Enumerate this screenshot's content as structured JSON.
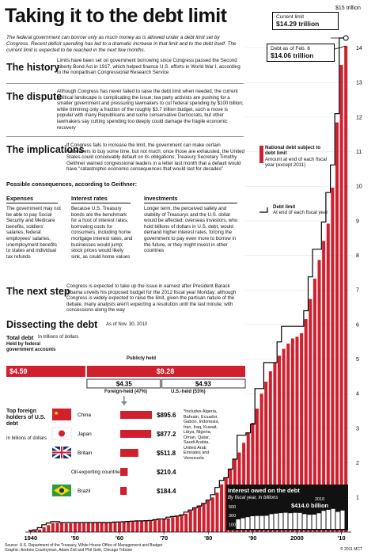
{
  "title": "Taking it to the debt limit",
  "intro": "The federal government can borrow only as much money as is allowed under a debt limit set by Congress. Recent deficit spending has led to a dramatic increase in that limit and to the debt itself. The current limit is expected to be reached in the next few months.",
  "sections": {
    "history_title": "The history",
    "history_body": "Limits have been set on government borrowing since Congress passed the Second Liberty Bond Act in 1917, which helped finance U.S. efforts in World War I, according to the nonpartisan Congressional Research Service",
    "dispute_title": "The dispute",
    "dispute_body": "Although Congress has never failed to raise the debt limit when needed, the current political landscape is complicating the issue; tea party activists are pushing for a smaller government and pressuring lawmakers to cut federal spending by $100 billion; while trimming only a fraction of the roughly $3.7 trillion budget, such a move is popular with many Republicans and some conservative Democrats, but other lawmakers say cutting spending too deeply could damage the fragile economic recovery",
    "implications_title": "The implications",
    "implications_body": "If Congress fails to increase the limit, the government can make certain maneuvers to buy some time, but not much; once those are exhausted, the United States could conceivably default on its obligations; Treasury Secretary Timothy Geithner warned congressional leaders in a letter last month that a default would have \"catastrophic economic consequences that would last for decades\"",
    "consequences_title": "Possible consequences, according to Geithner:",
    "expenses_head": "Expenses",
    "expenses_body": "The government may not be able to pay Social Security and Medicare benefits, soldiers' salaries, federal employees' salaries, unemployment benefits to states and individual tax refunds",
    "rates_head": "Interest rates",
    "rates_body": "Because U.S. Treasury bonds are the benchmark for a host of interest rates, borrowing costs for consumers, including home mortgage interest rates, and businesses would jump; stock prices would likely sink, as could home values",
    "investments_head": "Investments",
    "investments_body": "Longer term, the perceived safety and stability of Treasurys and the U.S. dollar would be affected; overseas investors, who hold billions of dollars in U.S. debt, would demand higher interest rates, forcing the government to pay even more to borrow in the future, or they might invest in other countries",
    "next_title": "The next step",
    "next_body": "Congress is expected to take up the issue in earnest after President Barack Obama unveils his proposed budget for the 2012 fiscal year Monday; although Congress is widely expected to raise the limit, given the partisan nature of the debate, many analysts aren't expecting a resolution until the last minute, with concessions along the way",
    "dissect_title": "Dissecting the debt",
    "dissect_date": "As of Nov. 30, 2010"
  },
  "breakdown": {
    "total_label": "Total debt",
    "total_unit": "In trillions of dollars",
    "fed_label": "Held by federal government accounts",
    "public_label": "Publicly held",
    "fed_value": 4.59,
    "fed_text": "$4.59",
    "public_value": 9.28,
    "public_text": "$9.28",
    "foreign_value": 4.35,
    "foreign_text": "$4.35",
    "us_value": 4.93,
    "us_text": "$4.93",
    "foreign_label": "Foreign-held (47%)",
    "us_label": "U.S.-held (53%)"
  },
  "holders": {
    "title": "Top foreign holders of U.S. debt",
    "unit": "In billions of dollars",
    "items": [
      {
        "name": "China",
        "value": 895.6,
        "text": "$895.6"
      },
      {
        "name": "Japan",
        "value": 877.2,
        "text": "$877.2"
      },
      {
        "name": "Britain",
        "value": 511.8,
        "text": "$511.8"
      },
      {
        "name": "Oil-exporting countries*",
        "value": 210.4,
        "text": "$210.4"
      },
      {
        "name": "Brazil",
        "value": 184.4,
        "text": "$184.4"
      }
    ],
    "footnote": "*Includes Algeria, Bahrain, Ecuador, Gabon, Indonesia, Iran, Iraq, Kuwait, Libya, Nigeria, Oman, Qatar, Saudi Arabia, United Arab Emirates and Venezuela"
  },
  "callouts": {
    "current_limit_label": "Current limit",
    "current_limit_value": "$14.29 trillion",
    "debt_feb_label": "Debt as of Feb. 8",
    "debt_feb_value": "$14.06 trillion",
    "top_label": "$15 trillion",
    "interest_title": "Interest owed on the debt",
    "interest_sub": "By fiscal year, in billions",
    "interest_year": "2010",
    "interest_value": "$414.0 billion"
  },
  "legend": {
    "debt_title": "National debt subject to debt limit",
    "debt_sub": "Amount at end of each fiscal year (except 2011)",
    "limit_title": "Debt limit",
    "limit_sub": "At end of each fiscal year"
  },
  "source": "Source: U.S. Department of the Treasury, White House Office of Management and Budget\nGraphic: Andrew Countryman, Adam Zoll and Phil Geib, Chicago Tribune",
  "copyright": "© 2011 MCT",
  "colors": {
    "debt_bar": "#d0202e",
    "limit_line": "#000000",
    "interest_bar": "#111111",
    "background": "#ffffff"
  },
  "chart_data": [
    {
      "type": "bar",
      "title": "",
      "xlabel": "",
      "ylabel": "",
      "ylim": [
        0,
        15
      ],
      "x_tick_labels": [
        "1940",
        "'50",
        "'60",
        "'70",
        "'80",
        "'90",
        "2000",
        "'10"
      ],
      "y_tick_labels": [
        "1",
        "2",
        "3",
        "4",
        "5",
        "6",
        "7",
        "8",
        "9",
        "10",
        "11",
        "12",
        "13",
        "14"
      ],
      "series": [
        {
          "name": "National debt subject to debt limit",
          "x": [
            1940,
            1941,
            1942,
            1943,
            1944,
            1945,
            1946,
            1947,
            1948,
            1949,
            1950,
            1951,
            1952,
            1953,
            1954,
            1955,
            1956,
            1957,
            1958,
            1959,
            1960,
            1961,
            1962,
            1963,
            1964,
            1965,
            1966,
            1967,
            1968,
            1969,
            1970,
            1971,
            1972,
            1973,
            1974,
            1975,
            1976,
            1977,
            1978,
            1979,
            1980,
            1981,
            1982,
            1983,
            1984,
            1985,
            1986,
            1987,
            1988,
            1989,
            1990,
            1991,
            1992,
            1993,
            1994,
            1995,
            1996,
            1997,
            1998,
            1999,
            2000,
            2001,
            2002,
            2003,
            2004,
            2005,
            2006,
            2007,
            2008,
            2009,
            2010,
            2011
          ],
          "values": [
            0.04,
            0.05,
            0.07,
            0.14,
            0.2,
            0.26,
            0.27,
            0.26,
            0.25,
            0.25,
            0.26,
            0.26,
            0.26,
            0.27,
            0.27,
            0.28,
            0.27,
            0.27,
            0.28,
            0.29,
            0.29,
            0.29,
            0.3,
            0.31,
            0.31,
            0.32,
            0.33,
            0.34,
            0.36,
            0.36,
            0.37,
            0.4,
            0.43,
            0.46,
            0.48,
            0.53,
            0.62,
            0.7,
            0.77,
            0.83,
            0.91,
            1.0,
            1.14,
            1.38,
            1.56,
            1.82,
            2.11,
            2.3,
            2.58,
            2.87,
            3.16,
            3.57,
            4.0,
            4.35,
            4.65,
            4.9,
            5.1,
            5.3,
            5.45,
            5.6,
            5.65,
            5.75,
            6.16,
            6.74,
            7.33,
            7.87,
            8.42,
            8.92,
            9.96,
            11.85,
            13.51,
            14.06
          ]
        },
        {
          "name": "Debt limit",
          "x": [
            1940,
            1941,
            1942,
            1943,
            1944,
            1945,
            1946,
            1947,
            1948,
            1949,
            1950,
            1951,
            1952,
            1953,
            1954,
            1955,
            1956,
            1957,
            1958,
            1959,
            1960,
            1961,
            1962,
            1963,
            1964,
            1965,
            1966,
            1967,
            1968,
            1969,
            1970,
            1971,
            1972,
            1973,
            1974,
            1975,
            1976,
            1977,
            1978,
            1979,
            1980,
            1981,
            1982,
            1983,
            1984,
            1985,
            1986,
            1987,
            1988,
            1989,
            1990,
            1991,
            1992,
            1993,
            1994,
            1995,
            1996,
            1997,
            1998,
            1999,
            2000,
            2001,
            2002,
            2003,
            2004,
            2005,
            2006,
            2007,
            2008,
            2009,
            2010,
            2011
          ],
          "values": [
            0.045,
            0.065,
            0.125,
            0.21,
            0.26,
            0.3,
            0.3,
            0.275,
            0.275,
            0.275,
            0.275,
            0.275,
            0.275,
            0.275,
            0.275,
            0.28,
            0.278,
            0.275,
            0.28,
            0.29,
            0.293,
            0.298,
            0.308,
            0.315,
            0.324,
            0.324,
            0.33,
            0.336,
            0.358,
            0.377,
            0.377,
            0.43,
            0.45,
            0.465,
            0.495,
            0.577,
            0.636,
            0.7,
            0.752,
            0.83,
            0.925,
            1.08,
            1.29,
            1.49,
            1.57,
            1.82,
            2.11,
            2.8,
            2.8,
            2.87,
            3.12,
            4.15,
            4.15,
            4.9,
            4.9,
            4.9,
            5.5,
            5.95,
            5.95,
            5.95,
            5.95,
            5.95,
            6.4,
            7.38,
            8.18,
            8.18,
            8.97,
            9.82,
            10.62,
            12.1,
            14.29,
            14.29
          ]
        }
      ]
    },
    {
      "type": "bar",
      "title": "Interest owed on the debt",
      "y_tick_labels": [
        "500",
        "300",
        "100"
      ],
      "ylim": [
        0,
        500
      ],
      "series": [
        {
          "name": "Interest owed on the debt",
          "x": [
            1988,
            1989,
            1990,
            1991,
            1992,
            1993,
            1994,
            1995,
            1996,
            1997,
            1998,
            1999,
            2000,
            2001,
            2002,
            2003,
            2004,
            2005,
            2006,
            2007,
            2008,
            2009,
            2010
          ],
          "values": [
            214,
            240,
            264,
            285,
            292,
            292,
            296,
            332,
            344,
            356,
            364,
            354,
            362,
            360,
            333,
            318,
            322,
            352,
            406,
            430,
            451,
            383,
            414
          ]
        }
      ]
    }
  ]
}
